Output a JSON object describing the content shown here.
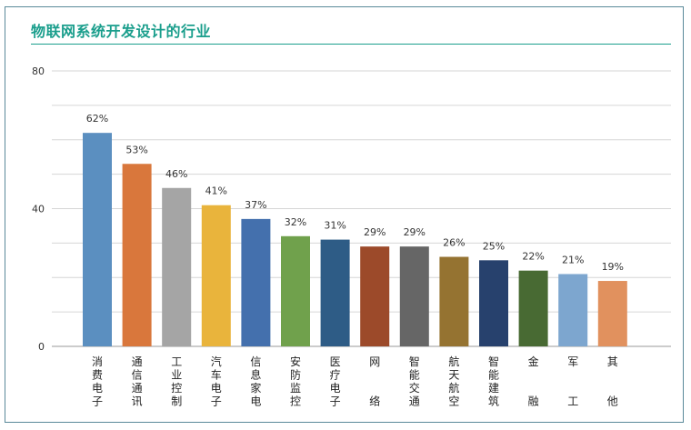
{
  "title": "物联网系统开发设计的行业",
  "chart_data": {
    "type": "bar",
    "title": "物联网系统开发设计的行业",
    "categories": [
      "消费电子",
      "通信通讯",
      "工业控制",
      "汽车电子",
      "信息家电",
      "安防监控",
      "医疗电子",
      "网络",
      "智能交通",
      "航天航空",
      "智能建筑",
      "金融",
      "军工",
      "其他"
    ],
    "values": [
      62,
      53,
      46,
      41,
      37,
      32,
      31,
      29,
      29,
      26,
      25,
      22,
      21,
      19
    ],
    "data_labels": [
      "62%",
      "53%",
      "46%",
      "41%",
      "37%",
      "32%",
      "31%",
      "29%",
      "29%",
      "26%",
      "25%",
      "22%",
      "21%",
      "19%"
    ],
    "colors": [
      "#5b8fc0",
      "#d9773c",
      "#a5a5a5",
      "#e9b43c",
      "#4470ad",
      "#70a14c",
      "#2e5c86",
      "#9c4a2a",
      "#666666",
      "#957331",
      "#27416d",
      "#486a33",
      "#7da6cf",
      "#e1915e"
    ],
    "yticks": [
      "0",
      "40",
      "80"
    ],
    "ylim": [
      0,
      80
    ],
    "grid": true,
    "xlabel": "",
    "ylabel": ""
  }
}
